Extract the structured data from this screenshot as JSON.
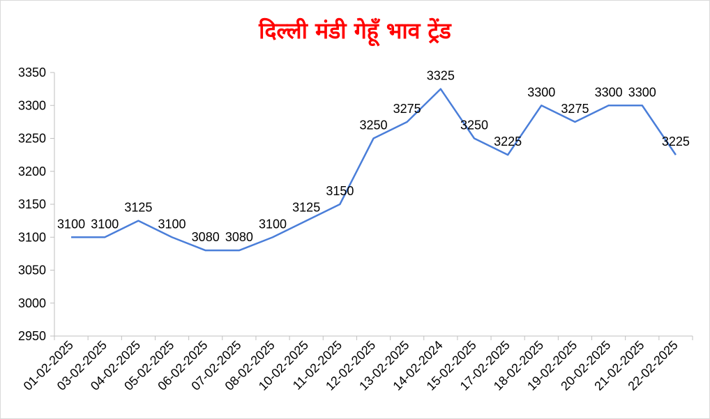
{
  "chart_data": {
    "type": "line",
    "title": "दिल्ली मंडी गेहूँ भाव ट्रेंड",
    "categories": [
      "01-02-2025",
      "03-02-2025",
      "04-02-2025",
      "05-02-2025",
      "06-02-2025",
      "07-02-2025",
      "08-02-2025",
      "10-02-2025",
      "11-02-2025",
      "12-02-2025",
      "13-02-2025",
      "14-02-2024",
      "15-02-2025",
      "17-02-2025",
      "18-02-2025",
      "19-02-2025",
      "20-02-2025",
      "21-02-2025",
      "22-02-2025"
    ],
    "values": [
      3100,
      3100,
      3125,
      3100,
      3080,
      3080,
      3100,
      3125,
      3150,
      3250,
      3275,
      3325,
      3250,
      3225,
      3300,
      3275,
      3300,
      3300,
      3225
    ],
    "ylim": [
      2950,
      3350
    ],
    "y_ticks": [
      "3350",
      "3300",
      "3250",
      "3200",
      "3150",
      "3100",
      "3050",
      "3000",
      "2950"
    ],
    "data_labels": [
      "3100",
      "3100",
      "3125",
      "3100",
      "3080",
      "3080",
      "3100",
      "3125",
      "3150",
      "3250",
      "3275",
      "3325",
      "3250",
      "3225",
      "3300",
      "3275",
      "3300",
      "3300",
      "3225"
    ],
    "grid": false,
    "legend": "none",
    "colors": {
      "line": "#4a7ed9",
      "title": "#ff0000",
      "axis": "#bfbfbf"
    }
  }
}
